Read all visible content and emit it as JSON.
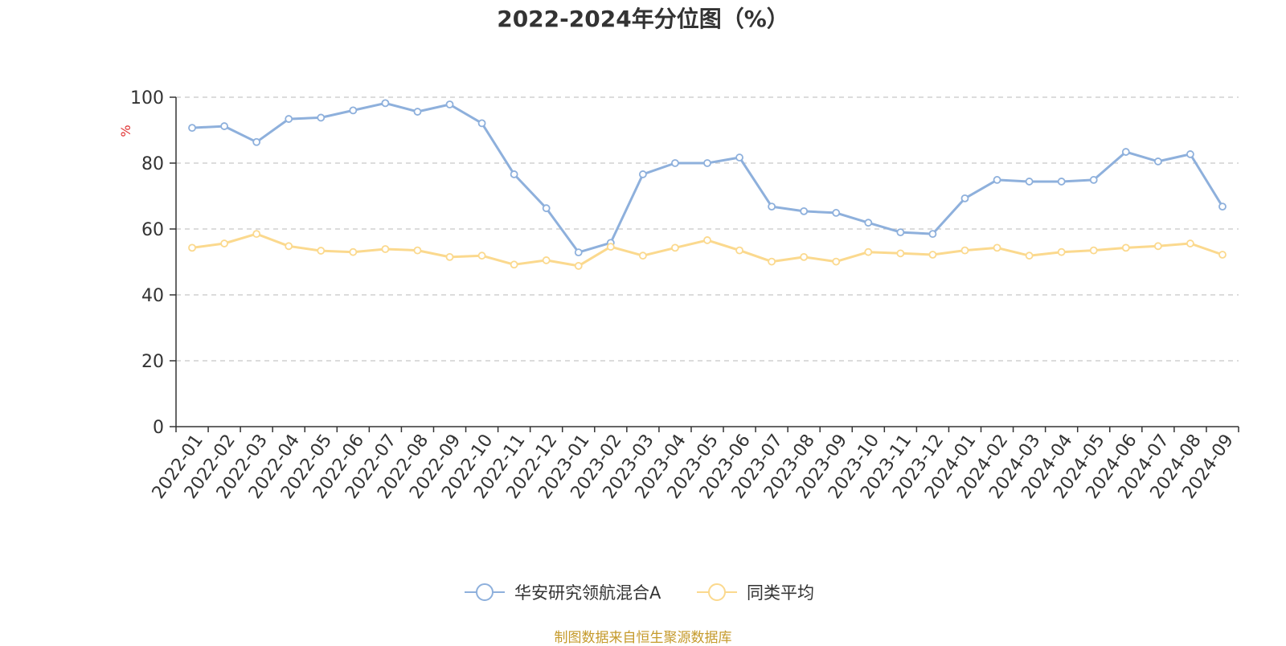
{
  "chart_data": {
    "type": "line",
    "title": "2022-2024年分位图（%）",
    "ylabel": "%",
    "xlabel": "",
    "ylim": [
      0,
      100
    ],
    "yticks": [
      0,
      20,
      40,
      60,
      80,
      100
    ],
    "grid": true,
    "legend_position": "bottom",
    "categories": [
      "2022-01",
      "2022-02",
      "2022-03",
      "2022-04",
      "2022-05",
      "2022-06",
      "2022-07",
      "2022-08",
      "2022-09",
      "2022-10",
      "2022-11",
      "2022-12",
      "2023-01",
      "2023-02",
      "2023-03",
      "2023-04",
      "2023-05",
      "2023-06",
      "2023-07",
      "2023-08",
      "2023-09",
      "2023-10",
      "2023-11",
      "2023-12",
      "2024-01",
      "2024-02",
      "2024-03",
      "2024-04",
      "2024-05",
      "2024-06",
      "2024-07",
      "2024-08",
      "2024-09"
    ],
    "series": [
      {
        "name": "华安研究领航混合A",
        "color": "#8eb0dc",
        "values": [
          90.7,
          91.2,
          86.4,
          93.4,
          93.8,
          96.0,
          98.2,
          95.6,
          97.8,
          92.1,
          76.6,
          66.3,
          52.9,
          55.8,
          76.6,
          80.0,
          80.0,
          81.7,
          66.8,
          65.4,
          64.9,
          61.9,
          59.0,
          58.5,
          69.3,
          74.9,
          74.4,
          74.4,
          74.9,
          83.4,
          80.5,
          82.7,
          66.8
        ]
      },
      {
        "name": "同类平均",
        "color": "#fbd98e",
        "values": [
          54.3,
          55.6,
          58.5,
          54.8,
          53.4,
          53.0,
          53.9,
          53.5,
          51.5,
          51.9,
          49.2,
          50.5,
          48.8,
          54.6,
          51.9,
          54.3,
          56.6,
          53.5,
          50.1,
          51.5,
          50.1,
          53.0,
          52.6,
          52.2,
          53.5,
          54.3,
          51.9,
          53.0,
          53.5,
          54.3,
          54.8,
          55.6,
          52.2
        ]
      }
    ]
  },
  "source_note": "制图数据来自恒生聚源数据库"
}
